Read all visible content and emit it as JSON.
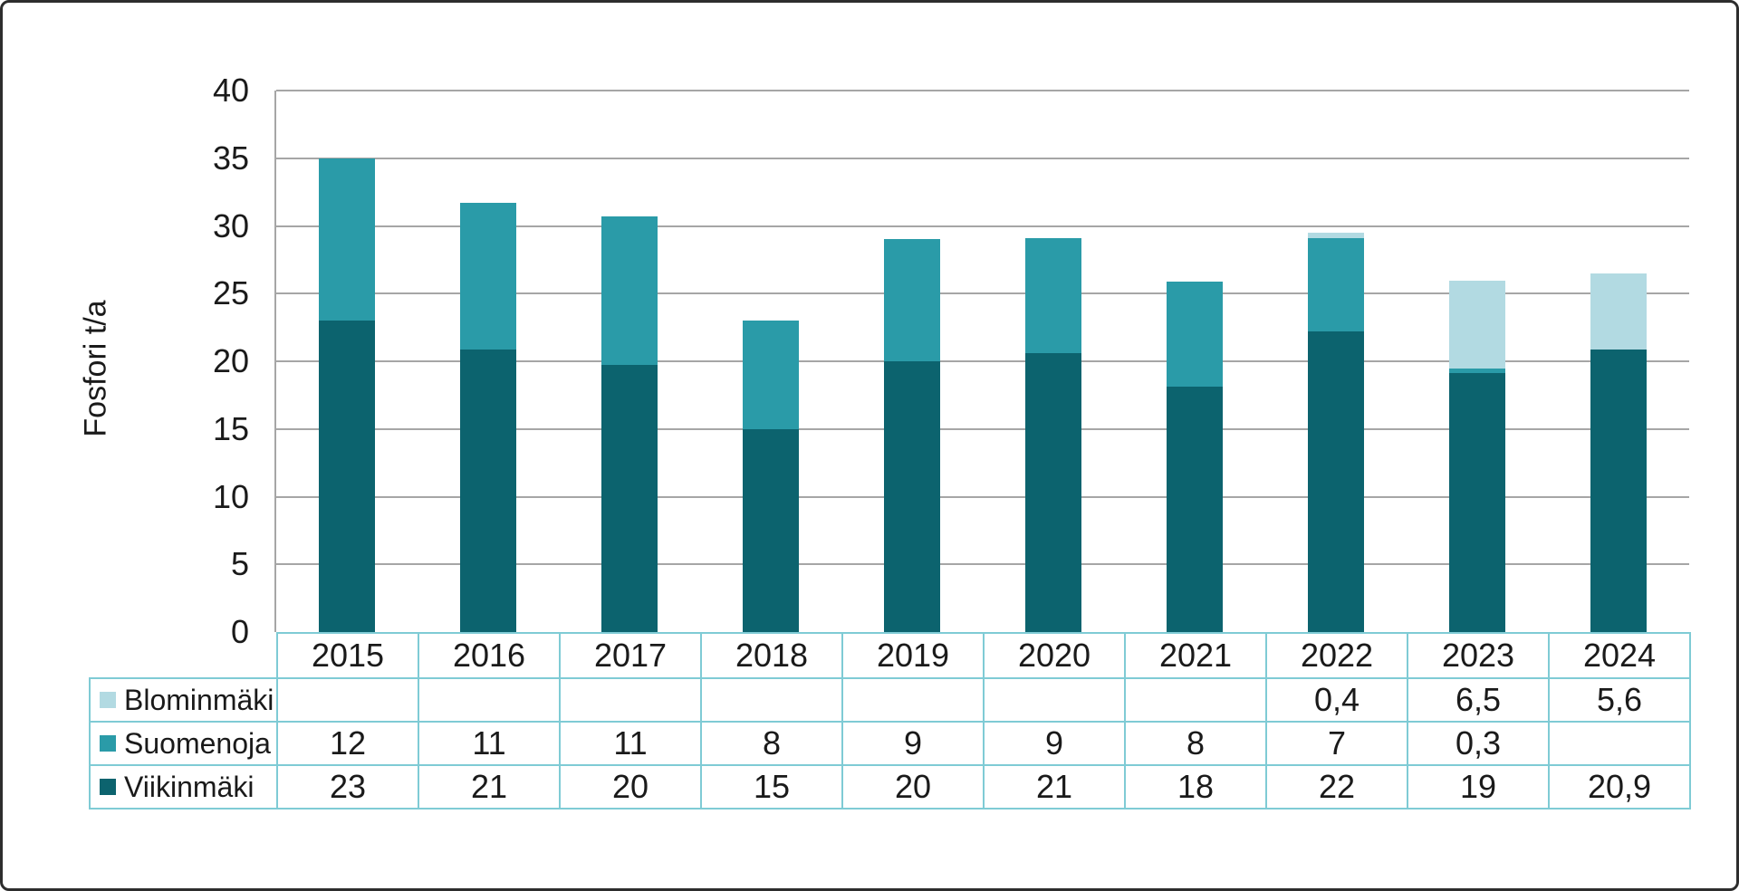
{
  "chart_data": {
    "type": "bar",
    "stacked": true,
    "title": "",
    "ylabel": "Fosfori t/a",
    "xlabel": "",
    "ylim": [
      0,
      40
    ],
    "yticks": [
      0,
      5,
      10,
      15,
      20,
      25,
      30,
      35,
      40
    ],
    "grid": true,
    "legend_position": "table-rows-left-of-data-table",
    "categories": [
      "2015",
      "2016",
      "2017",
      "2018",
      "2019",
      "2020",
      "2021",
      "2022",
      "2023",
      "2024"
    ],
    "series": [
      {
        "name": "Blominmäki",
        "color": "#b2dae2",
        "values_display": [
          "",
          "",
          "",
          "",
          "",
          "",
          "",
          "0,4",
          "6,5",
          "5,6"
        ],
        "values_plot": [
          0,
          0,
          0,
          0,
          0,
          0,
          0,
          0.4,
          6.5,
          5.6
        ]
      },
      {
        "name": "Suomenoja",
        "color": "#2a9ba8",
        "values_display": [
          "12",
          "11",
          "11",
          "8",
          "9",
          "9",
          "8",
          "7",
          "0,3",
          ""
        ],
        "values_plot": [
          12,
          10.8,
          11,
          8,
          9,
          8.5,
          7.8,
          6.9,
          0.35,
          0
        ]
      },
      {
        "name": "Viikinmäki",
        "color": "#0c636e",
        "values_display": [
          "23",
          "21",
          "20",
          "15",
          "20",
          "21",
          "18",
          "22",
          "19",
          "20,9"
        ],
        "values_plot": [
          23,
          20.9,
          19.7,
          15,
          20,
          20.6,
          18.1,
          22.2,
          19.1,
          20.9
        ]
      }
    ]
  },
  "colors": {
    "gridline": "#a6a6a6",
    "axis_line": "#a6a6a6",
    "table_border": "#7fcbd5",
    "text": "#1a1a1a",
    "background": "#ffffff"
  }
}
